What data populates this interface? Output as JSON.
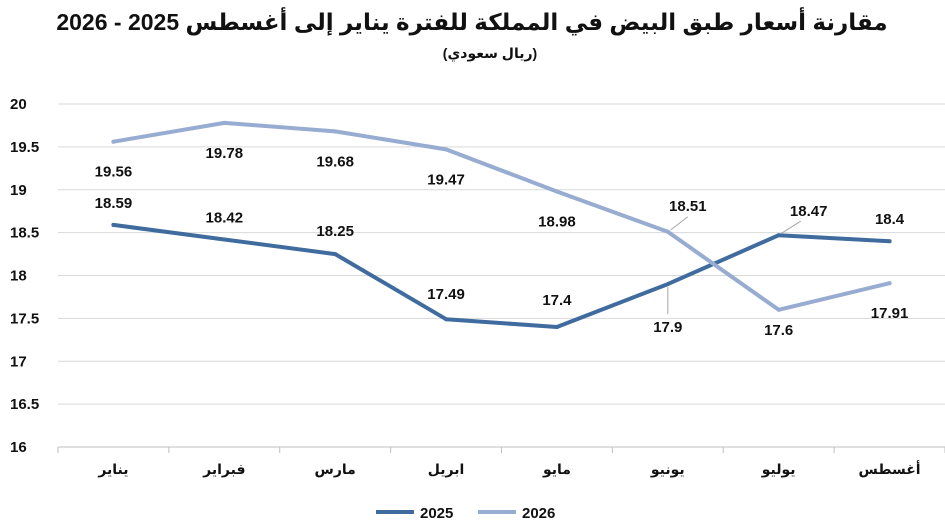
{
  "chart_data": {
    "type": "line",
    "title": "مقارنة أسعار طبق البيض في المملكة للفترة يناير إلى أغسطس 2025 - 2026",
    "subtitle": "(ريال سعودي)",
    "categories": [
      "يناير",
      "فبراير",
      "مارس",
      "ابريل",
      "مايو",
      "يونيو",
      "يوليو",
      "أغسطس"
    ],
    "y_ticks": [
      "20",
      "19.5",
      "19",
      "18.5",
      "18",
      "17.5",
      "17",
      "16.5",
      "16"
    ],
    "ylim": [
      16,
      20
    ],
    "grid": true,
    "legend_position": "bottom",
    "series": [
      {
        "name": "2025",
        "color": "#3F6B9E",
        "values": [
          18.59,
          18.42,
          18.25,
          17.49,
          17.4,
          17.9,
          18.47,
          18.4
        ],
        "labels": [
          "18.59",
          "18.42",
          "18.25",
          "17.49",
          "17.4",
          "17.9",
          "18.47",
          "18.4"
        ]
      },
      {
        "name": "2026",
        "color": "#97ACD0",
        "values": [
          19.56,
          19.78,
          19.68,
          19.47,
          18.98,
          18.51,
          17.6,
          17.91
        ],
        "labels": [
          "19.56",
          "19.78",
          "19.68",
          "19.47",
          "18.98",
          "18.51",
          "17.6",
          "17.91"
        ]
      }
    ]
  }
}
